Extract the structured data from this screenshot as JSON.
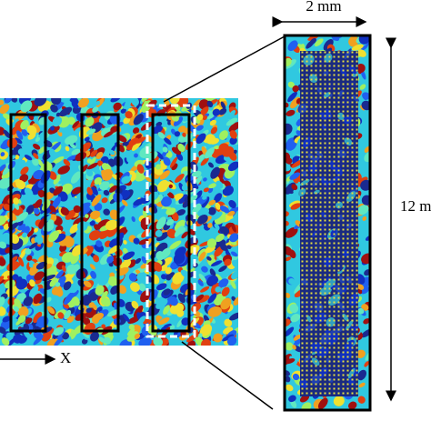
{
  "scale_width_label": "2 mm",
  "scale_height_label": "12 m",
  "axis_label": "X"
}
